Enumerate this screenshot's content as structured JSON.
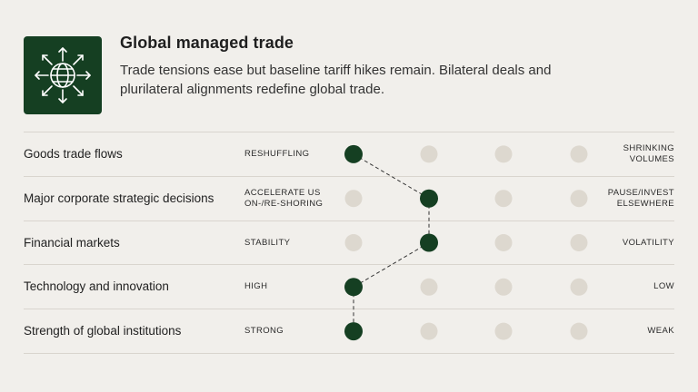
{
  "header": {
    "title": "Global managed trade",
    "subtitle": "Trade tensions ease but baseline tariff hikes remain. Bilateral deals and plurilateral alignments redefine global trade.",
    "icon": "globe-with-outward-arrows-icon",
    "icon_bg_color": "#153f22"
  },
  "scale": {
    "positions": 4,
    "active_color": "#153f22",
    "inactive_color": "#ddd8cf",
    "connector_style": "dashed"
  },
  "rows": [
    {
      "label": "Goods trade flows",
      "left": [
        "RESHUFFLING"
      ],
      "right": [
        "SHRINKING",
        "VOLUMES"
      ],
      "selected": 1
    },
    {
      "label": "Major corporate strategic decisions",
      "left": [
        "ACCELERATE US",
        "ON-/RE-SHORING"
      ],
      "right": [
        "PAUSE/INVEST",
        "ELSEWHERE"
      ],
      "selected": 2
    },
    {
      "label": "Financial markets",
      "left": [
        "STABILITY"
      ],
      "right": [
        "VOLATILITY"
      ],
      "selected": 2
    },
    {
      "label": "Technology and innovation",
      "left": [
        "HIGH"
      ],
      "right": [
        "LOW"
      ],
      "selected": 1
    },
    {
      "label": "Strength of global institutions",
      "left": [
        "STRONG"
      ],
      "right": [
        "WEAK"
      ],
      "selected": 1
    }
  ]
}
